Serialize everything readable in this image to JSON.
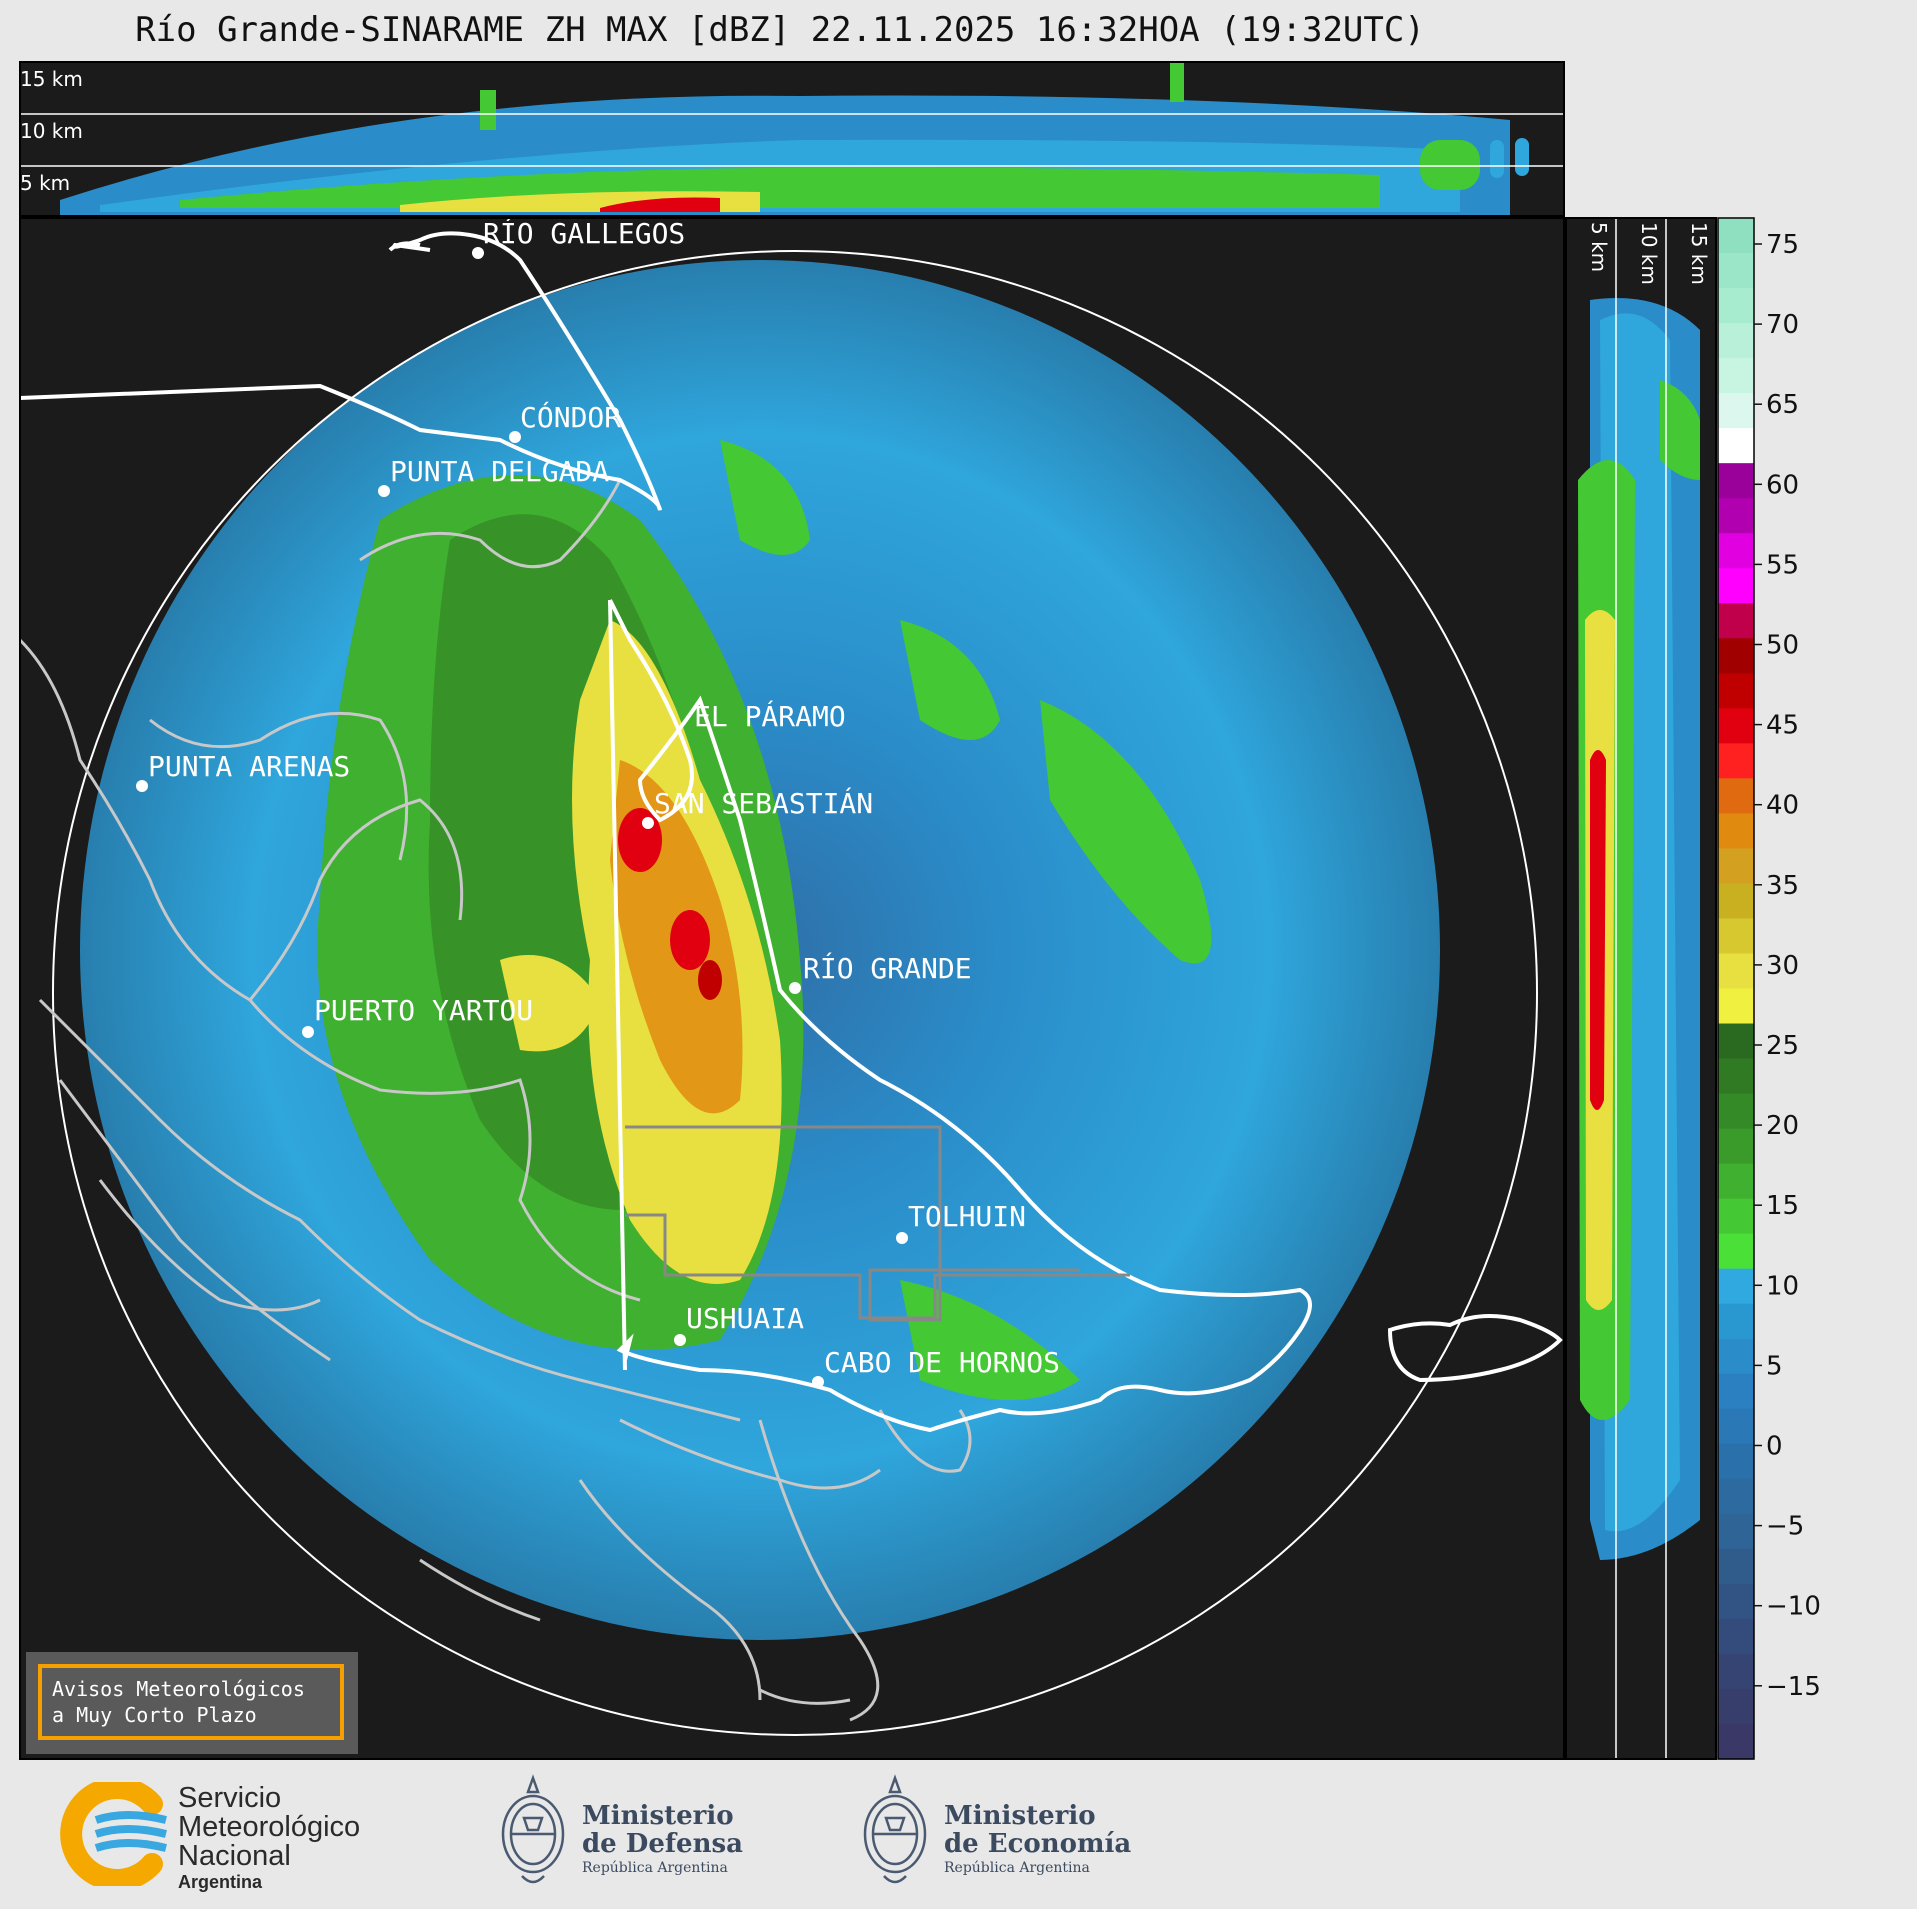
{
  "title": "Río Grande-SINARAME ZH MAX [dBZ] 22.11.2025 16:32HOA (19:32UTC)",
  "top_panel": {
    "height_labels": [
      "15 km",
      "10 km",
      "5 km"
    ]
  },
  "side_panel": {
    "height_labels": [
      "5 km",
      "10 km",
      "15 km"
    ]
  },
  "cities": [
    {
      "name": "RÍO GALLEGOS"
    },
    {
      "name": "CÓNDOR"
    },
    {
      "name": "PUNTA DELGADA"
    },
    {
      "name": "PUNTA ARENAS"
    },
    {
      "name": "EL PÁRAMO"
    },
    {
      "name": "SAN SEBASTIÁN"
    },
    {
      "name": "RÍO GRANDE"
    },
    {
      "name": "PUERTO YARTOU"
    },
    {
      "name": "TOLHUIN"
    },
    {
      "name": "USHUAIA"
    },
    {
      "name": "CABO DE HORNOS"
    }
  ],
  "colorbar": {
    "unit": "dBZ",
    "ticks": [
      "75",
      "70",
      "65",
      "60",
      "55",
      "50",
      "45",
      "40",
      "35",
      "30",
      "25",
      "20",
      "15",
      "10",
      "5",
      "0",
      "−5",
      "−10",
      "−15"
    ],
    "colors": [
      "#8fe0c0",
      "#9be6c8",
      "#a8ecd0",
      "#b8f0da",
      "#c8f4e2",
      "#dcf8ee",
      "#ffffff",
      "#9a009a",
      "#b000b0",
      "#e000e0",
      "#ff00ff",
      "#c0004a",
      "#a00000",
      "#c00000",
      "#e00010",
      "#ff2020",
      "#e06a10",
      "#e08a10",
      "#d4a020",
      "#c8b020",
      "#d8c830",
      "#e8e040",
      "#f0f040",
      "#2a6a20",
      "#2f7a22",
      "#338a26",
      "#3a9a2a",
      "#40b030",
      "#44c834",
      "#4ae038",
      "#30a8e0",
      "#2a98d0",
      "#2a8cc8",
      "#2a80c0",
      "#2a78b6",
      "#2a70aa",
      "#2c6aa0",
      "#2e6496",
      "#305c8c",
      "#325484",
      "#344c7c",
      "#364474",
      "#383e6c",
      "#3a3866"
    ]
  },
  "alert_box": {
    "line1": "Avisos Meteorológicos",
    "line2": "a Muy Corto Plazo"
  },
  "footer": {
    "smn": {
      "line1": "Servicio",
      "line2": "Meteorológico",
      "line3": "Nacional",
      "line4": "Argentina"
    },
    "defensa": {
      "line1": "Ministerio",
      "line2": "de Defensa",
      "line3": "República Argentina"
    },
    "economia": {
      "line1": "Ministerio",
      "line2": "de Economía",
      "line3": "República Argentina"
    }
  }
}
